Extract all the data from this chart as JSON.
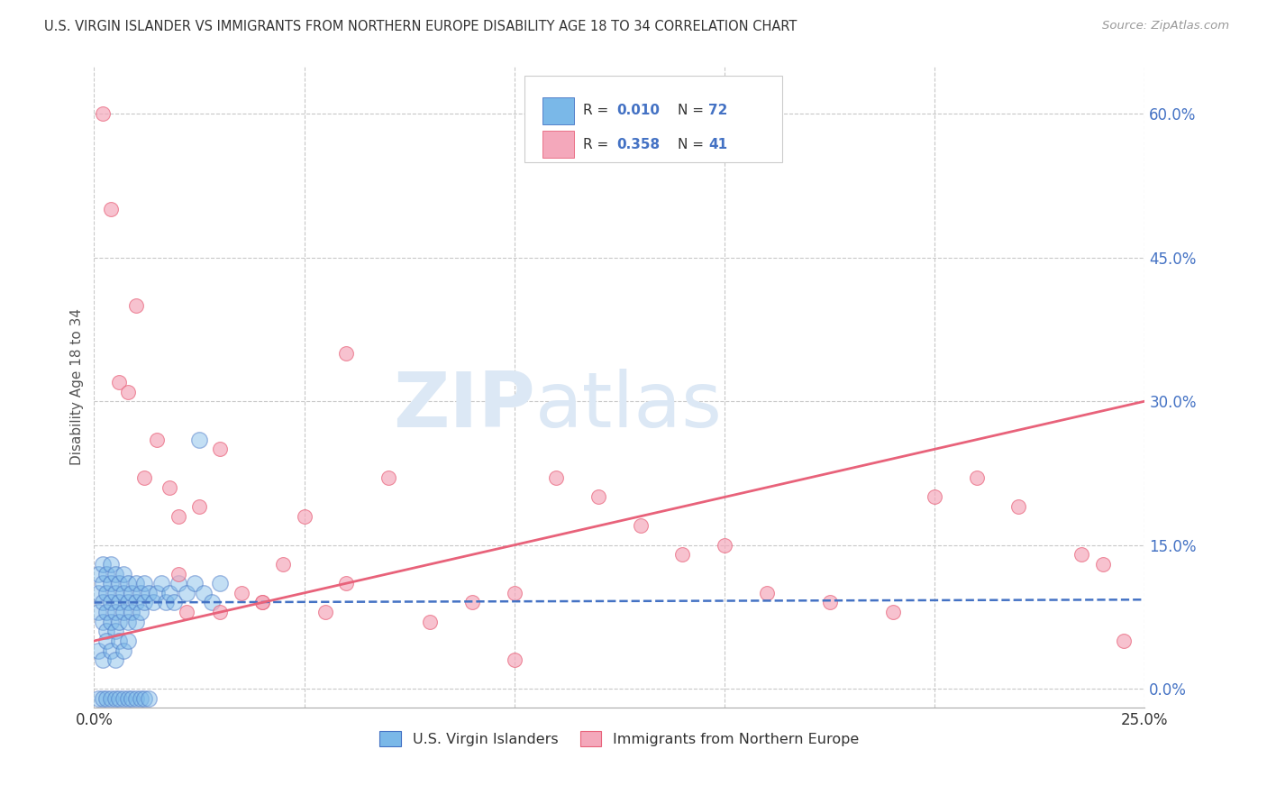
{
  "title": "U.S. VIRGIN ISLANDER VS IMMIGRANTS FROM NORTHERN EUROPE DISABILITY AGE 18 TO 34 CORRELATION CHART",
  "source": "Source: ZipAtlas.com",
  "ylabel": "Disability Age 18 to 34",
  "xlim": [
    0.0,
    0.25
  ],
  "ylim": [
    -0.02,
    0.65
  ],
  "xticks": [
    0.0,
    0.05,
    0.1,
    0.15,
    0.2,
    0.25
  ],
  "xtick_labels": [
    "0.0%",
    "",
    "",
    "",
    "",
    "25.0%"
  ],
  "yticks_right": [
    0.0,
    0.15,
    0.3,
    0.45,
    0.6
  ],
  "color_blue": "#7ab8e8",
  "color_pink": "#f4a8bb",
  "color_blue_dark": "#4472c4",
  "color_pink_dark": "#e8627a",
  "color_r_value": "#4472c4",
  "watermark_zip": "ZIP",
  "watermark_atlas": "atlas",
  "watermark_color": "#dce8f5",
  "series1_label": "U.S. Virgin Islanders",
  "series2_label": "Immigrants from Northern Europe",
  "blue_points_x": [
    0.001,
    0.001,
    0.001,
    0.002,
    0.002,
    0.002,
    0.002,
    0.003,
    0.003,
    0.003,
    0.003,
    0.004,
    0.004,
    0.004,
    0.004,
    0.005,
    0.005,
    0.005,
    0.005,
    0.006,
    0.006,
    0.006,
    0.007,
    0.007,
    0.007,
    0.008,
    0.008,
    0.008,
    0.009,
    0.009,
    0.01,
    0.01,
    0.01,
    0.011,
    0.011,
    0.012,
    0.012,
    0.013,
    0.014,
    0.015,
    0.016,
    0.017,
    0.018,
    0.019,
    0.02,
    0.022,
    0.024,
    0.026,
    0.028,
    0.03,
    0.001,
    0.002,
    0.003,
    0.004,
    0.005,
    0.006,
    0.007,
    0.008,
    0.001,
    0.002,
    0.003,
    0.004,
    0.005,
    0.006,
    0.007,
    0.008,
    0.009,
    0.01,
    0.011,
    0.012,
    0.013,
    0.025
  ],
  "blue_points_y": [
    0.1,
    0.08,
    0.12,
    0.09,
    0.11,
    0.07,
    0.13,
    0.1,
    0.08,
    0.12,
    0.06,
    0.09,
    0.11,
    0.07,
    0.13,
    0.1,
    0.08,
    0.12,
    0.06,
    0.09,
    0.11,
    0.07,
    0.1,
    0.08,
    0.12,
    0.09,
    0.11,
    0.07,
    0.1,
    0.08,
    0.09,
    0.11,
    0.07,
    0.1,
    0.08,
    0.09,
    0.11,
    0.1,
    0.09,
    0.1,
    0.11,
    0.09,
    0.1,
    0.09,
    0.11,
    0.1,
    0.11,
    0.1,
    0.09,
    0.11,
    0.04,
    0.03,
    0.05,
    0.04,
    0.03,
    0.05,
    0.04,
    0.05,
    -0.01,
    -0.01,
    -0.01,
    -0.01,
    -0.01,
    -0.01,
    -0.01,
    -0.01,
    -0.01,
    -0.01,
    -0.01,
    -0.01,
    -0.01,
    0.26
  ],
  "pink_points_x": [
    0.002,
    0.004,
    0.006,
    0.008,
    0.01,
    0.012,
    0.015,
    0.018,
    0.02,
    0.022,
    0.025,
    0.03,
    0.035,
    0.04,
    0.045,
    0.05,
    0.055,
    0.06,
    0.07,
    0.08,
    0.09,
    0.1,
    0.11,
    0.12,
    0.13,
    0.14,
    0.15,
    0.16,
    0.175,
    0.19,
    0.2,
    0.21,
    0.22,
    0.235,
    0.24,
    0.245,
    0.02,
    0.03,
    0.04,
    0.06,
    0.1
  ],
  "pink_points_y": [
    0.6,
    0.5,
    0.32,
    0.31,
    0.4,
    0.22,
    0.26,
    0.21,
    0.18,
    0.08,
    0.19,
    0.25,
    0.1,
    0.09,
    0.13,
    0.18,
    0.08,
    0.11,
    0.22,
    0.07,
    0.09,
    0.1,
    0.22,
    0.2,
    0.17,
    0.14,
    0.15,
    0.1,
    0.09,
    0.08,
    0.2,
    0.22,
    0.19,
    0.14,
    0.13,
    0.05,
    0.12,
    0.08,
    0.09,
    0.35,
    0.03
  ],
  "blue_trend_x": [
    0.0,
    0.25
  ],
  "blue_trend_y": [
    0.09,
    0.093
  ],
  "pink_trend_x": [
    0.0,
    0.25
  ],
  "pink_trend_y": [
    0.05,
    0.3
  ]
}
